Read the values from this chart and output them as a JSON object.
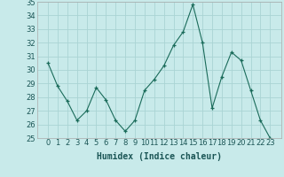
{
  "x": [
    0,
    1,
    2,
    3,
    4,
    5,
    6,
    7,
    8,
    9,
    10,
    11,
    12,
    13,
    14,
    15,
    16,
    17,
    18,
    19,
    20,
    21,
    22,
    23
  ],
  "y": [
    30.5,
    28.8,
    27.7,
    26.3,
    27.0,
    28.7,
    27.8,
    26.3,
    25.5,
    26.3,
    28.5,
    29.3,
    30.3,
    31.8,
    32.8,
    34.8,
    32.0,
    27.2,
    29.5,
    31.3,
    30.7,
    28.5,
    26.3,
    25.0
  ],
  "line_color": "#1a6b5a",
  "marker": "+",
  "bg_color": "#c8eaea",
  "grid_color": "#aad4d4",
  "xlabel": "Humidex (Indice chaleur)",
  "ylim": [
    25,
    35
  ],
  "yticks": [
    25,
    26,
    27,
    28,
    29,
    30,
    31,
    32,
    33,
    34,
    35
  ],
  "xticks": [
    0,
    1,
    2,
    3,
    4,
    5,
    6,
    7,
    8,
    9,
    10,
    11,
    12,
    13,
    14,
    15,
    16,
    17,
    18,
    19,
    20,
    21,
    22,
    23
  ],
  "xlabel_fontsize": 7,
  "tick_fontsize": 6
}
